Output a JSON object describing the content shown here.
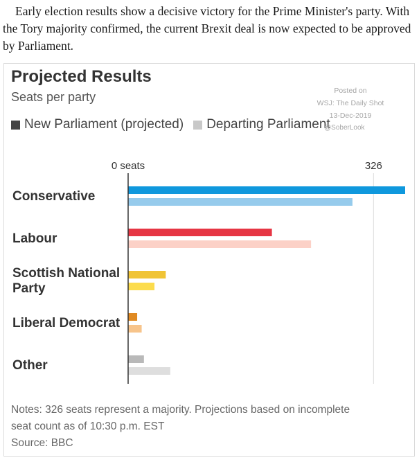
{
  "intro_text": "Early election results show a decisive victory for the Prime Minister's party. With the Tory majority confirmed, the current Brexit deal is now expected to be approved by Parliament.",
  "watermark": {
    "line1": "Posted on",
    "line2": "WSJ: The Daily Shot",
    "line3": "13-Dec-2019",
    "handle": "@SoberLook"
  },
  "notes": {
    "line1": "Notes: 326 seats represent a majority. Projections based on incomplete",
    "line2": "seat count as of 10:30 p.m. EST",
    "source": "Source: BBC"
  },
  "colors": {
    "legend_new": "#444444",
    "legend_departing": "#c8c8c8"
  },
  "chart_data": {
    "type": "bar",
    "orientation": "horizontal",
    "title": "Projected Results",
    "subtitle": "Seats per party",
    "categories": [
      [
        "Conservative"
      ],
      [
        "Labour"
      ],
      [
        "Scottish National",
        "Party"
      ],
      [
        "Liberal Democrat"
      ],
      [
        "Other"
      ]
    ],
    "series": [
      {
        "name": "New Parliament (projected)",
        "values": [
          368,
          191,
          50,
          12,
          21
        ],
        "colors": [
          "#0f98dd",
          "#e63644",
          "#f0c436",
          "#e08a22",
          "#b9b9b9"
        ]
      },
      {
        "name": "Departing Parliament",
        "values": [
          298,
          243,
          35,
          18,
          56
        ],
        "colors": [
          "#96cbec",
          "#fcd1c7",
          "#fcdc4d",
          "#f7c48b",
          "#dedede"
        ]
      }
    ],
    "x_axis": {
      "start_label": "0 seats",
      "reference_value": 326,
      "reference_label": "326",
      "range": [
        0,
        368
      ]
    },
    "legend_position": "top-left"
  }
}
